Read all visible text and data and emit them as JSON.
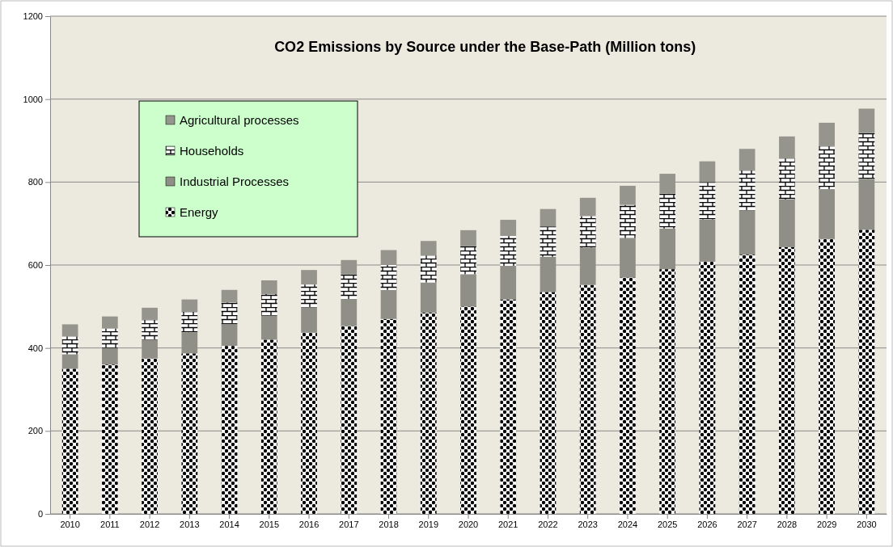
{
  "chart_data": {
    "type": "bar",
    "stacked": true,
    "title": "CO2 Emissions by Source under the Base-Path (Million tons)",
    "categories": [
      "2010",
      "2011",
      "2012",
      "2013",
      "2014",
      "2015",
      "2016",
      "2017",
      "2018",
      "2019",
      "2020",
      "2021",
      "2022",
      "2023",
      "2024",
      "2025",
      "2026",
      "2027",
      "2028",
      "2029",
      "2030"
    ],
    "series": [
      {
        "name": "Energy",
        "color": "#000000",
        "values": [
          350,
          360,
          375,
          387,
          405,
          420,
          437,
          453,
          470,
          485,
          500,
          517,
          535,
          552,
          570,
          590,
          608,
          625,
          643,
          663,
          685
        ]
      },
      {
        "name": "Industrial Processes",
        "color": "#8f8e87",
        "values": [
          35,
          40,
          45,
          51,
          53,
          58,
          61,
          65,
          70,
          73,
          78,
          81,
          85,
          90,
          95,
          98,
          102,
          107,
          115,
          120,
          123
        ]
      },
      {
        "name": "Households",
        "color": "#ffffff",
        "values": [
          43,
          47,
          48,
          49,
          52,
          52,
          55,
          59,
          60,
          65,
          67,
          72,
          73,
          76,
          80,
          84,
          90,
          96,
          99,
          104,
          110
        ]
      },
      {
        "name": "Agricultural processes",
        "color": "#96958d",
        "values": [
          29,
          29,
          29,
          30,
          30,
          33,
          35,
          35,
          36,
          35,
          39,
          39,
          42,
          44,
          46,
          48,
          50,
          52,
          53,
          56,
          59
        ]
      }
    ],
    "ylim": [
      0,
      1200
    ],
    "yticks": [
      0,
      200,
      400,
      600,
      800,
      1000,
      1200
    ],
    "grid": "y",
    "legend": "top left"
  }
}
